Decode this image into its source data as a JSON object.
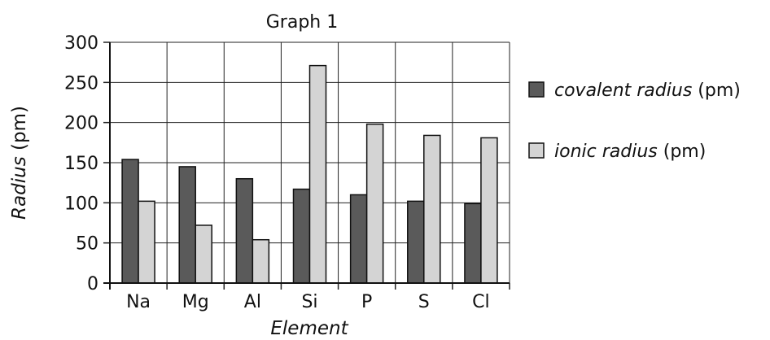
{
  "chart_data": {
    "type": "bar",
    "title": "Graph 1",
    "xlabel": "Element",
    "ylabel": "Radius",
    "ylabel_unit": "(pm)",
    "categories": [
      "Na",
      "Mg",
      "Al",
      "Si",
      "P",
      "S",
      "Cl"
    ],
    "ylim": [
      0,
      300
    ],
    "yticks": [
      0,
      50,
      100,
      150,
      200,
      250,
      300
    ],
    "grid": true,
    "legend_position": "right",
    "series": [
      {
        "name": "covalent radius",
        "unit": "(pm)",
        "color": "#5a5a5a",
        "values": [
          154,
          145,
          130,
          117,
          110,
          102,
          99
        ]
      },
      {
        "name": "ionic radius",
        "unit": "(pm)",
        "color": "#d4d4d4",
        "values": [
          102,
          72,
          54,
          271,
          198,
          184,
          181
        ]
      }
    ]
  }
}
